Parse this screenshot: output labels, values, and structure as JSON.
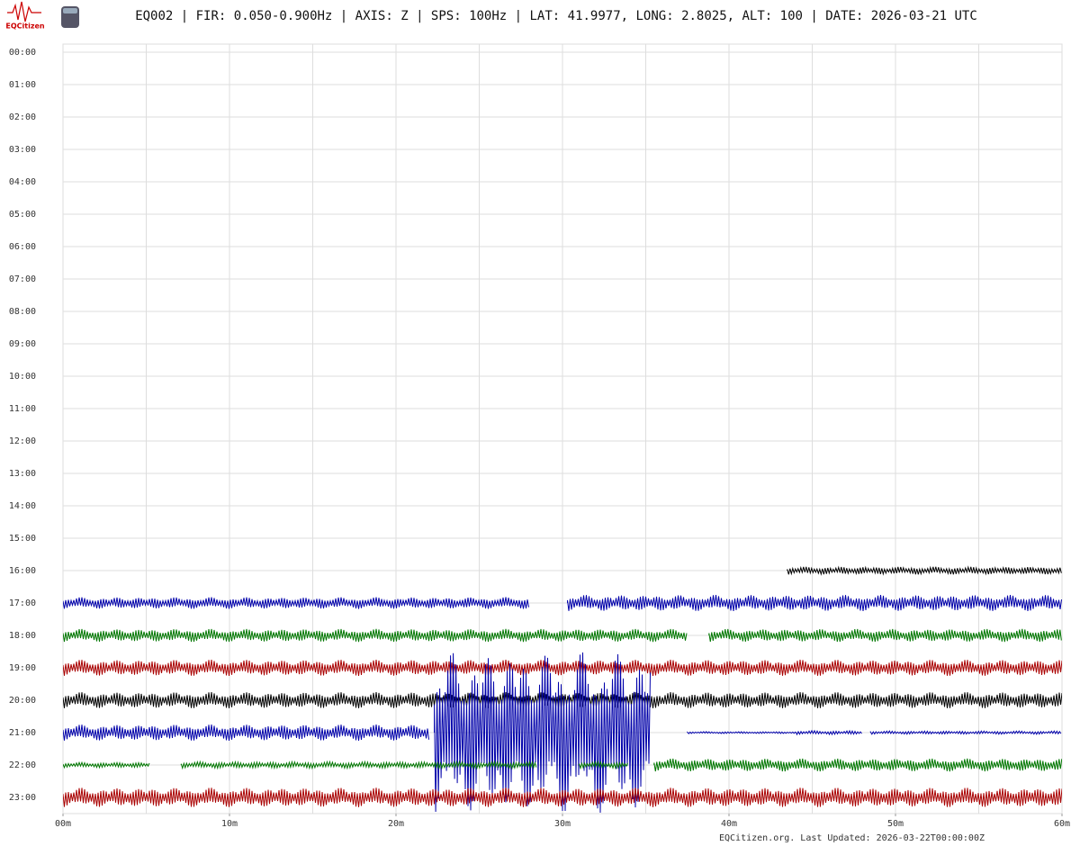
{
  "header": {
    "logo_text": "EQCitizen",
    "title": "EQ002 | FIR: 0.050-0.900Hz | AXIS: Z | SPS: 100Hz | LAT: 41.9977, LONG: 2.8025, ALT: 100 | DATE: 2026-03-21 UTC"
  },
  "footer": "EQCitizen.org. Last Updated: 2026-03-22T00:00:00Z",
  "chart_data": {
    "type": "helicorder",
    "xlim": [
      0,
      60
    ],
    "xticks": [
      {
        "value": 0,
        "label": "00m"
      },
      {
        "value": 10,
        "label": "10m"
      },
      {
        "value": 20,
        "label": "20m"
      },
      {
        "value": 30,
        "label": "30m"
      },
      {
        "value": 40,
        "label": "40m"
      },
      {
        "value": 50,
        "label": "50m"
      },
      {
        "value": 60,
        "label": "60m"
      }
    ],
    "xgrid": [
      0,
      5,
      10,
      15,
      20,
      25,
      30,
      35,
      40,
      45,
      50,
      55,
      60
    ],
    "ylim": [
      -0.25,
      23.5
    ],
    "yticks": [
      {
        "value": 0,
        "label": "00:00"
      },
      {
        "value": 1,
        "label": "01:00"
      },
      {
        "value": 2,
        "label": "02:00"
      },
      {
        "value": 3,
        "label": "03:00"
      },
      {
        "value": 4,
        "label": "04:00"
      },
      {
        "value": 5,
        "label": "05:00"
      },
      {
        "value": 6,
        "label": "06:00"
      },
      {
        "value": 7,
        "label": "07:00"
      },
      {
        "value": 8,
        "label": "08:00"
      },
      {
        "value": 9,
        "label": "09:00"
      },
      {
        "value": 10,
        "label": "10:00"
      },
      {
        "value": 11,
        "label": "11:00"
      },
      {
        "value": 12,
        "label": "12:00"
      },
      {
        "value": 13,
        "label": "13:00"
      },
      {
        "value": 14,
        "label": "14:00"
      },
      {
        "value": 15,
        "label": "15:00"
      },
      {
        "value": 16,
        "label": "16:00"
      },
      {
        "value": 17,
        "label": "17:00"
      },
      {
        "value": 18,
        "label": "18:00"
      },
      {
        "value": 19,
        "label": "19:00"
      },
      {
        "value": 20,
        "label": "20:00"
      },
      {
        "value": 21,
        "label": "21:00"
      },
      {
        "value": 22,
        "label": "22:00"
      },
      {
        "value": 23,
        "label": "23:00"
      }
    ],
    "grid": true,
    "series": [
      {
        "hour": 16,
        "color": "#000000",
        "segments": [
          [
            43.5,
            60,
            0.12
          ]
        ]
      },
      {
        "hour": 17,
        "color": "#0000aa",
        "segments": [
          [
            0,
            28,
            0.18
          ],
          [
            30.3,
            60,
            0.25
          ]
        ]
      },
      {
        "hour": 18,
        "color": "#007700",
        "segments": [
          [
            0,
            37.5,
            0.2
          ],
          [
            38.8,
            60,
            0.2
          ]
        ]
      },
      {
        "hour": 19,
        "color": "#aa0000",
        "segments": [
          [
            0,
            60,
            0.25
          ]
        ]
      },
      {
        "hour": 20,
        "color": "#000000",
        "segments": [
          [
            0,
            60,
            0.25
          ]
        ]
      },
      {
        "hour": 21,
        "color": "#0000aa",
        "segments": [
          [
            0,
            22,
            0.25
          ],
          [
            22.3,
            35.3,
            2.5
          ],
          [
            37.5,
            44,
            0.03
          ],
          [
            44,
            48,
            0.06
          ],
          [
            48.5,
            60,
            0.05
          ]
        ]
      },
      {
        "hour": 22,
        "color": "#007700",
        "segments": [
          [
            0,
            5.2,
            0.08
          ],
          [
            7.1,
            28.5,
            0.1
          ],
          [
            31,
            34,
            0.1
          ],
          [
            35.5,
            60,
            0.2
          ]
        ]
      },
      {
        "hour": 23,
        "color": "#aa0000",
        "segments": [
          [
            0,
            60,
            0.3
          ]
        ]
      }
    ]
  }
}
